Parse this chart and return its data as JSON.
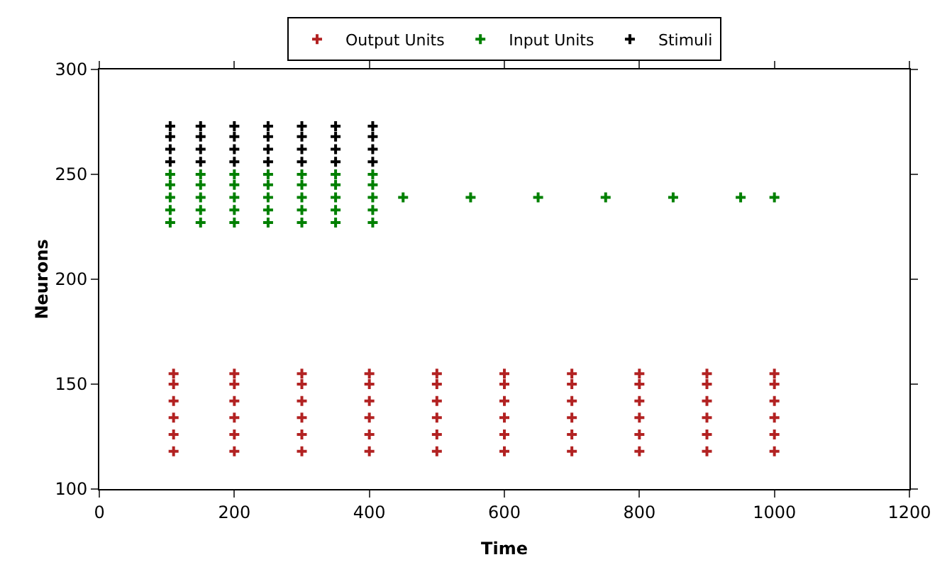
{
  "chart_data": {
    "type": "scatter",
    "xlabel": "Time",
    "ylabel": "Neurons",
    "xlim": [
      0,
      1200
    ],
    "xticks": [
      0,
      200,
      400,
      600,
      800,
      1000,
      1200
    ],
    "ylim": [
      100,
      300
    ],
    "yticks": [
      100,
      150,
      200,
      250,
      300
    ],
    "grid": false,
    "legend": "top",
    "marker": "cross",
    "series": [
      {
        "name": "Output Units",
        "color": "#b22222",
        "x": [
          110,
          200,
          300,
          400,
          500,
          600,
          700,
          800,
          900,
          1000,
          110,
          200,
          300,
          400,
          500,
          600,
          700,
          800,
          900,
          1000,
          110,
          200,
          300,
          400,
          500,
          600,
          700,
          800,
          900,
          1000,
          110,
          200,
          300,
          400,
          500,
          600,
          700,
          800,
          900,
          1000,
          110,
          200,
          300,
          400,
          500,
          600,
          700,
          800,
          900,
          1000,
          110,
          200,
          300,
          400,
          500,
          600,
          700,
          800,
          900,
          1000
        ],
        "values": [
          118,
          118,
          118,
          118,
          118,
          118,
          118,
          118,
          118,
          118,
          126,
          126,
          126,
          126,
          126,
          126,
          126,
          126,
          126,
          126,
          134,
          134,
          134,
          134,
          134,
          134,
          134,
          134,
          134,
          134,
          142,
          142,
          142,
          142,
          142,
          142,
          142,
          142,
          142,
          142,
          150,
          150,
          150,
          150,
          150,
          150,
          150,
          150,
          150,
          150,
          155,
          155,
          155,
          155,
          155,
          155,
          155,
          155,
          155,
          155
        ]
      },
      {
        "name": "Input Units",
        "color": "#008000",
        "x": [
          105,
          150,
          200,
          250,
          300,
          350,
          405,
          105,
          150,
          200,
          250,
          300,
          350,
          405,
          105,
          150,
          200,
          250,
          300,
          350,
          405,
          105,
          150,
          200,
          250,
          300,
          350,
          405,
          105,
          150,
          200,
          250,
          300,
          350,
          405,
          450,
          550,
          650,
          750,
          850,
          950,
          1000
        ],
        "values": [
          227,
          227,
          227,
          227,
          227,
          227,
          227,
          233,
          233,
          233,
          233,
          233,
          233,
          233,
          239,
          239,
          239,
          239,
          239,
          239,
          239,
          245,
          245,
          245,
          245,
          245,
          245,
          245,
          250,
          250,
          250,
          250,
          250,
          250,
          250,
          239,
          239,
          239,
          239,
          239,
          239,
          239
        ]
      },
      {
        "name": "Stimuli",
        "color": "#000000",
        "x": [
          105,
          150,
          200,
          250,
          300,
          350,
          405,
          105,
          150,
          200,
          250,
          300,
          350,
          405,
          105,
          150,
          200,
          250,
          300,
          350,
          405,
          105,
          150,
          200,
          250,
          300,
          350,
          405
        ],
        "values": [
          256,
          256,
          256,
          256,
          256,
          256,
          256,
          262,
          262,
          262,
          262,
          262,
          262,
          262,
          268,
          268,
          268,
          268,
          268,
          268,
          268,
          273,
          273,
          273,
          273,
          273,
          273,
          273
        ]
      }
    ]
  }
}
